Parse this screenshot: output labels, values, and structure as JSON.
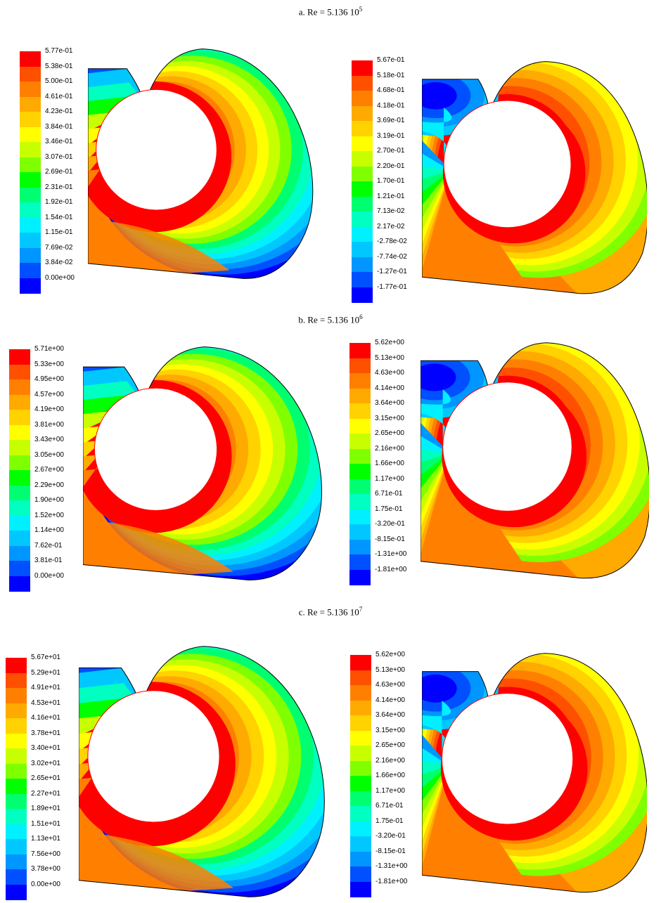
{
  "palette": [
    "#0000ff",
    "#0050ff",
    "#0096ff",
    "#00c8ff",
    "#00f0ff",
    "#00ffc0",
    "#00ff70",
    "#00ff00",
    "#80ff00",
    "#c8ff00",
    "#ffff00",
    "#ffd200",
    "#ffaa00",
    "#ff8000",
    "#ff5000",
    "#ff0000"
  ],
  "rows": [
    {
      "caption_main": "a. Re = 5.136 10",
      "caption_exp": "5",
      "panels": [
        {
          "levels": [
            "5.77e-01",
            "5.38e-01",
            "5.00e-01",
            "4.61e-01",
            "4.23e-01",
            "3.84e-01",
            "3.46e-01",
            "3.07e-01",
            "2.69e-01",
            "2.31e-01",
            "1.92e-01",
            "1.54e-01",
            "1.15e-01",
            "7.69e-02",
            "3.84e-02",
            "0.00e+00"
          ]
        },
        {
          "levels": [
            "5.67e-01",
            "5.18e-01",
            "4.68e-01",
            "4.18e-01",
            "3.69e-01",
            "3.19e-01",
            "2.70e-01",
            "2.20e-01",
            "1.70e-01",
            "1.21e-01",
            "7.13e-02",
            "2.17e-02",
            "-2.78e-02",
            "-7.74e-02",
            "-1.27e-01",
            "-1.77e-01"
          ]
        }
      ]
    },
    {
      "caption_main": "b. Re = 5.136 10",
      "caption_exp": "6",
      "panels": [
        {
          "levels": [
            "5.71e+00",
            "5.33e+00",
            "4.95e+00",
            "4.57e+00",
            "4.19e+00",
            "3.81e+00",
            "3.43e+00",
            "3.05e+00",
            "2.67e+00",
            "2.29e+00",
            "1.90e+00",
            "1.52e+00",
            "1.14e+00",
            "7.62e-01",
            "3.81e-01",
            "0.00e+00"
          ]
        },
        {
          "levels": [
            "5.62e+00",
            "5.13e+00",
            "4.63e+00",
            "4.14e+00",
            "3.64e+00",
            "3.15e+00",
            "2.65e+00",
            "2.16e+00",
            "1.66e+00",
            "1.17e+00",
            "6.71e-01",
            "1.75e-01",
            "-3.20e-01",
            "-8.15e-01",
            "-1.31e+00",
            "-1.81e+00"
          ]
        }
      ]
    },
    {
      "caption_main": "c. Re = 5.136 10",
      "caption_exp": "7",
      "panels": [
        {
          "levels": [
            "5.67e+01",
            "5.29e+01",
            "4.91e+01",
            "4.53e+01",
            "4.16e+01",
            "3.78e+01",
            "3.40e+01",
            "3.02e+01",
            "2.65e+01",
            "2.27e+01",
            "1.89e+01",
            "1.51e+01",
            "1.13e+01",
            "7.56e+00",
            "3.78e+00",
            "0.00e+00"
          ]
        },
        {
          "levels": [
            "5.62e+00",
            "5.13e+00",
            "4.63e+00",
            "4.14e+00",
            "3.64e+00",
            "3.15e+00",
            "2.65e+00",
            "2.16e+00",
            "1.66e+00",
            "1.17e+00",
            "6.71e-01",
            "1.75e-01",
            "-3.20e-01",
            "-8.15e-01",
            "-1.31e+00",
            "-1.81e+00"
          ]
        }
      ]
    }
  ]
}
